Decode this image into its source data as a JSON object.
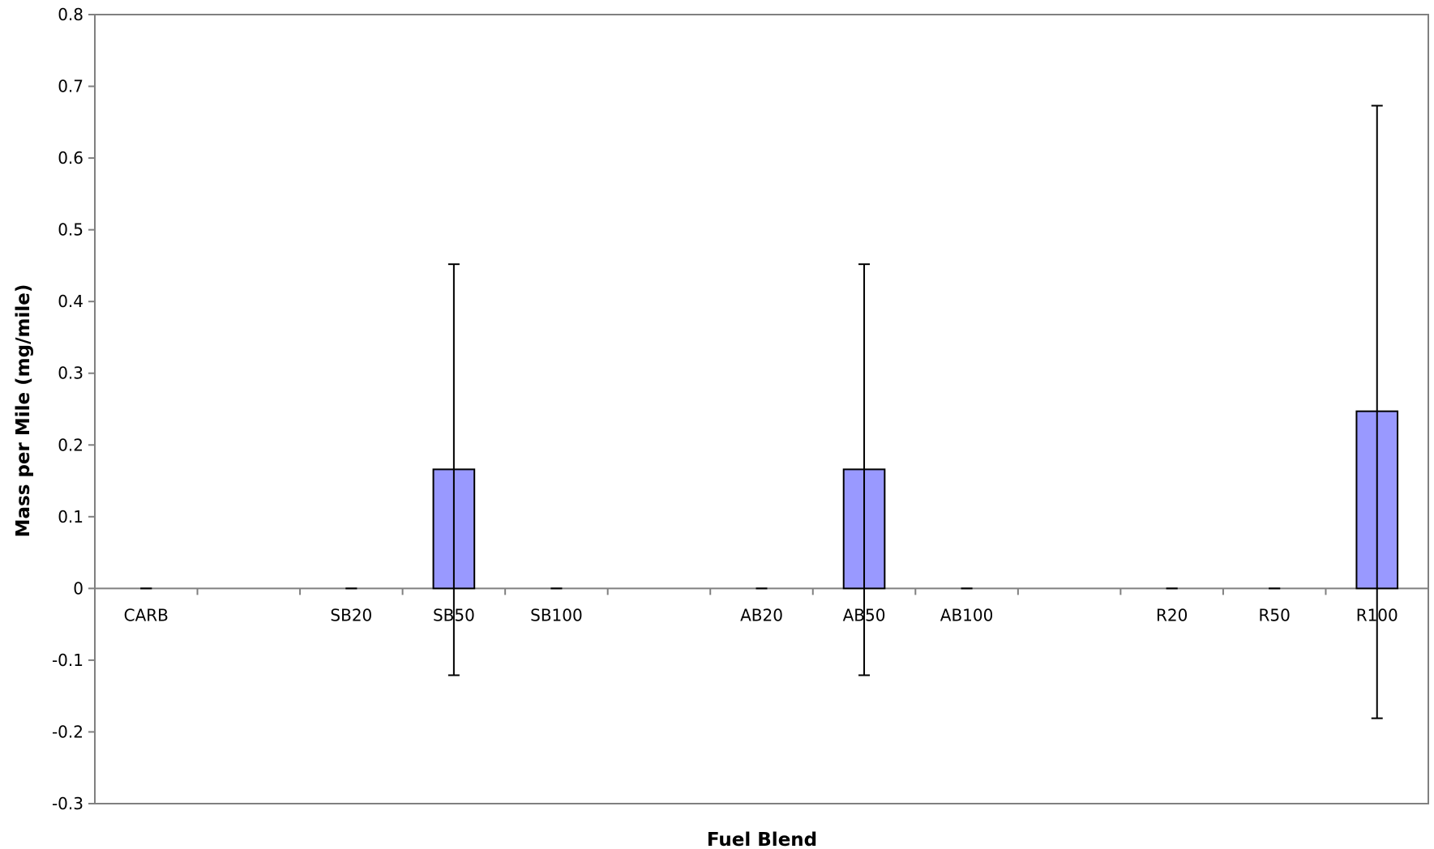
{
  "chart_data": {
    "type": "bar",
    "title": "",
    "xlabel": "Fuel Blend",
    "ylabel": "Mass per Mile (mg/mile)",
    "ylim": [
      -0.3,
      0.8
    ],
    "yticks": [
      -0.3,
      -0.2,
      -0.1,
      0,
      0.1,
      0.2,
      0.3,
      0.4,
      0.5,
      0.6,
      0.7,
      0.8
    ],
    "ytick_labels": [
      "-0.3",
      "-0.2",
      "-0.1",
      "0",
      "0.1",
      "0.2",
      "0.3",
      "0.4",
      "0.5",
      "0.6",
      "0.7",
      "0.8"
    ],
    "grid": false,
    "legend": "none",
    "categories": [
      "CARB",
      "",
      "SB20",
      "SB50",
      "SB100",
      "",
      "AB20",
      "AB50",
      "AB100",
      "",
      "R20",
      "R50",
      "R100"
    ],
    "values": [
      0,
      null,
      0,
      0.166,
      0,
      null,
      0,
      0.166,
      0,
      null,
      0,
      0,
      0.247
    ],
    "error_upper": [
      0,
      null,
      0,
      0.452,
      0,
      null,
      0,
      0.452,
      0,
      null,
      0,
      0,
      0.673
    ],
    "error_lower": [
      0,
      null,
      0,
      -0.121,
      0,
      null,
      0,
      -0.121,
      0,
      null,
      0,
      0,
      -0.181
    ],
    "colors": {
      "bar_fill": "#9999ff",
      "bar_stroke": "#000000",
      "axis": "#808080",
      "error_bar": "#000000"
    }
  }
}
